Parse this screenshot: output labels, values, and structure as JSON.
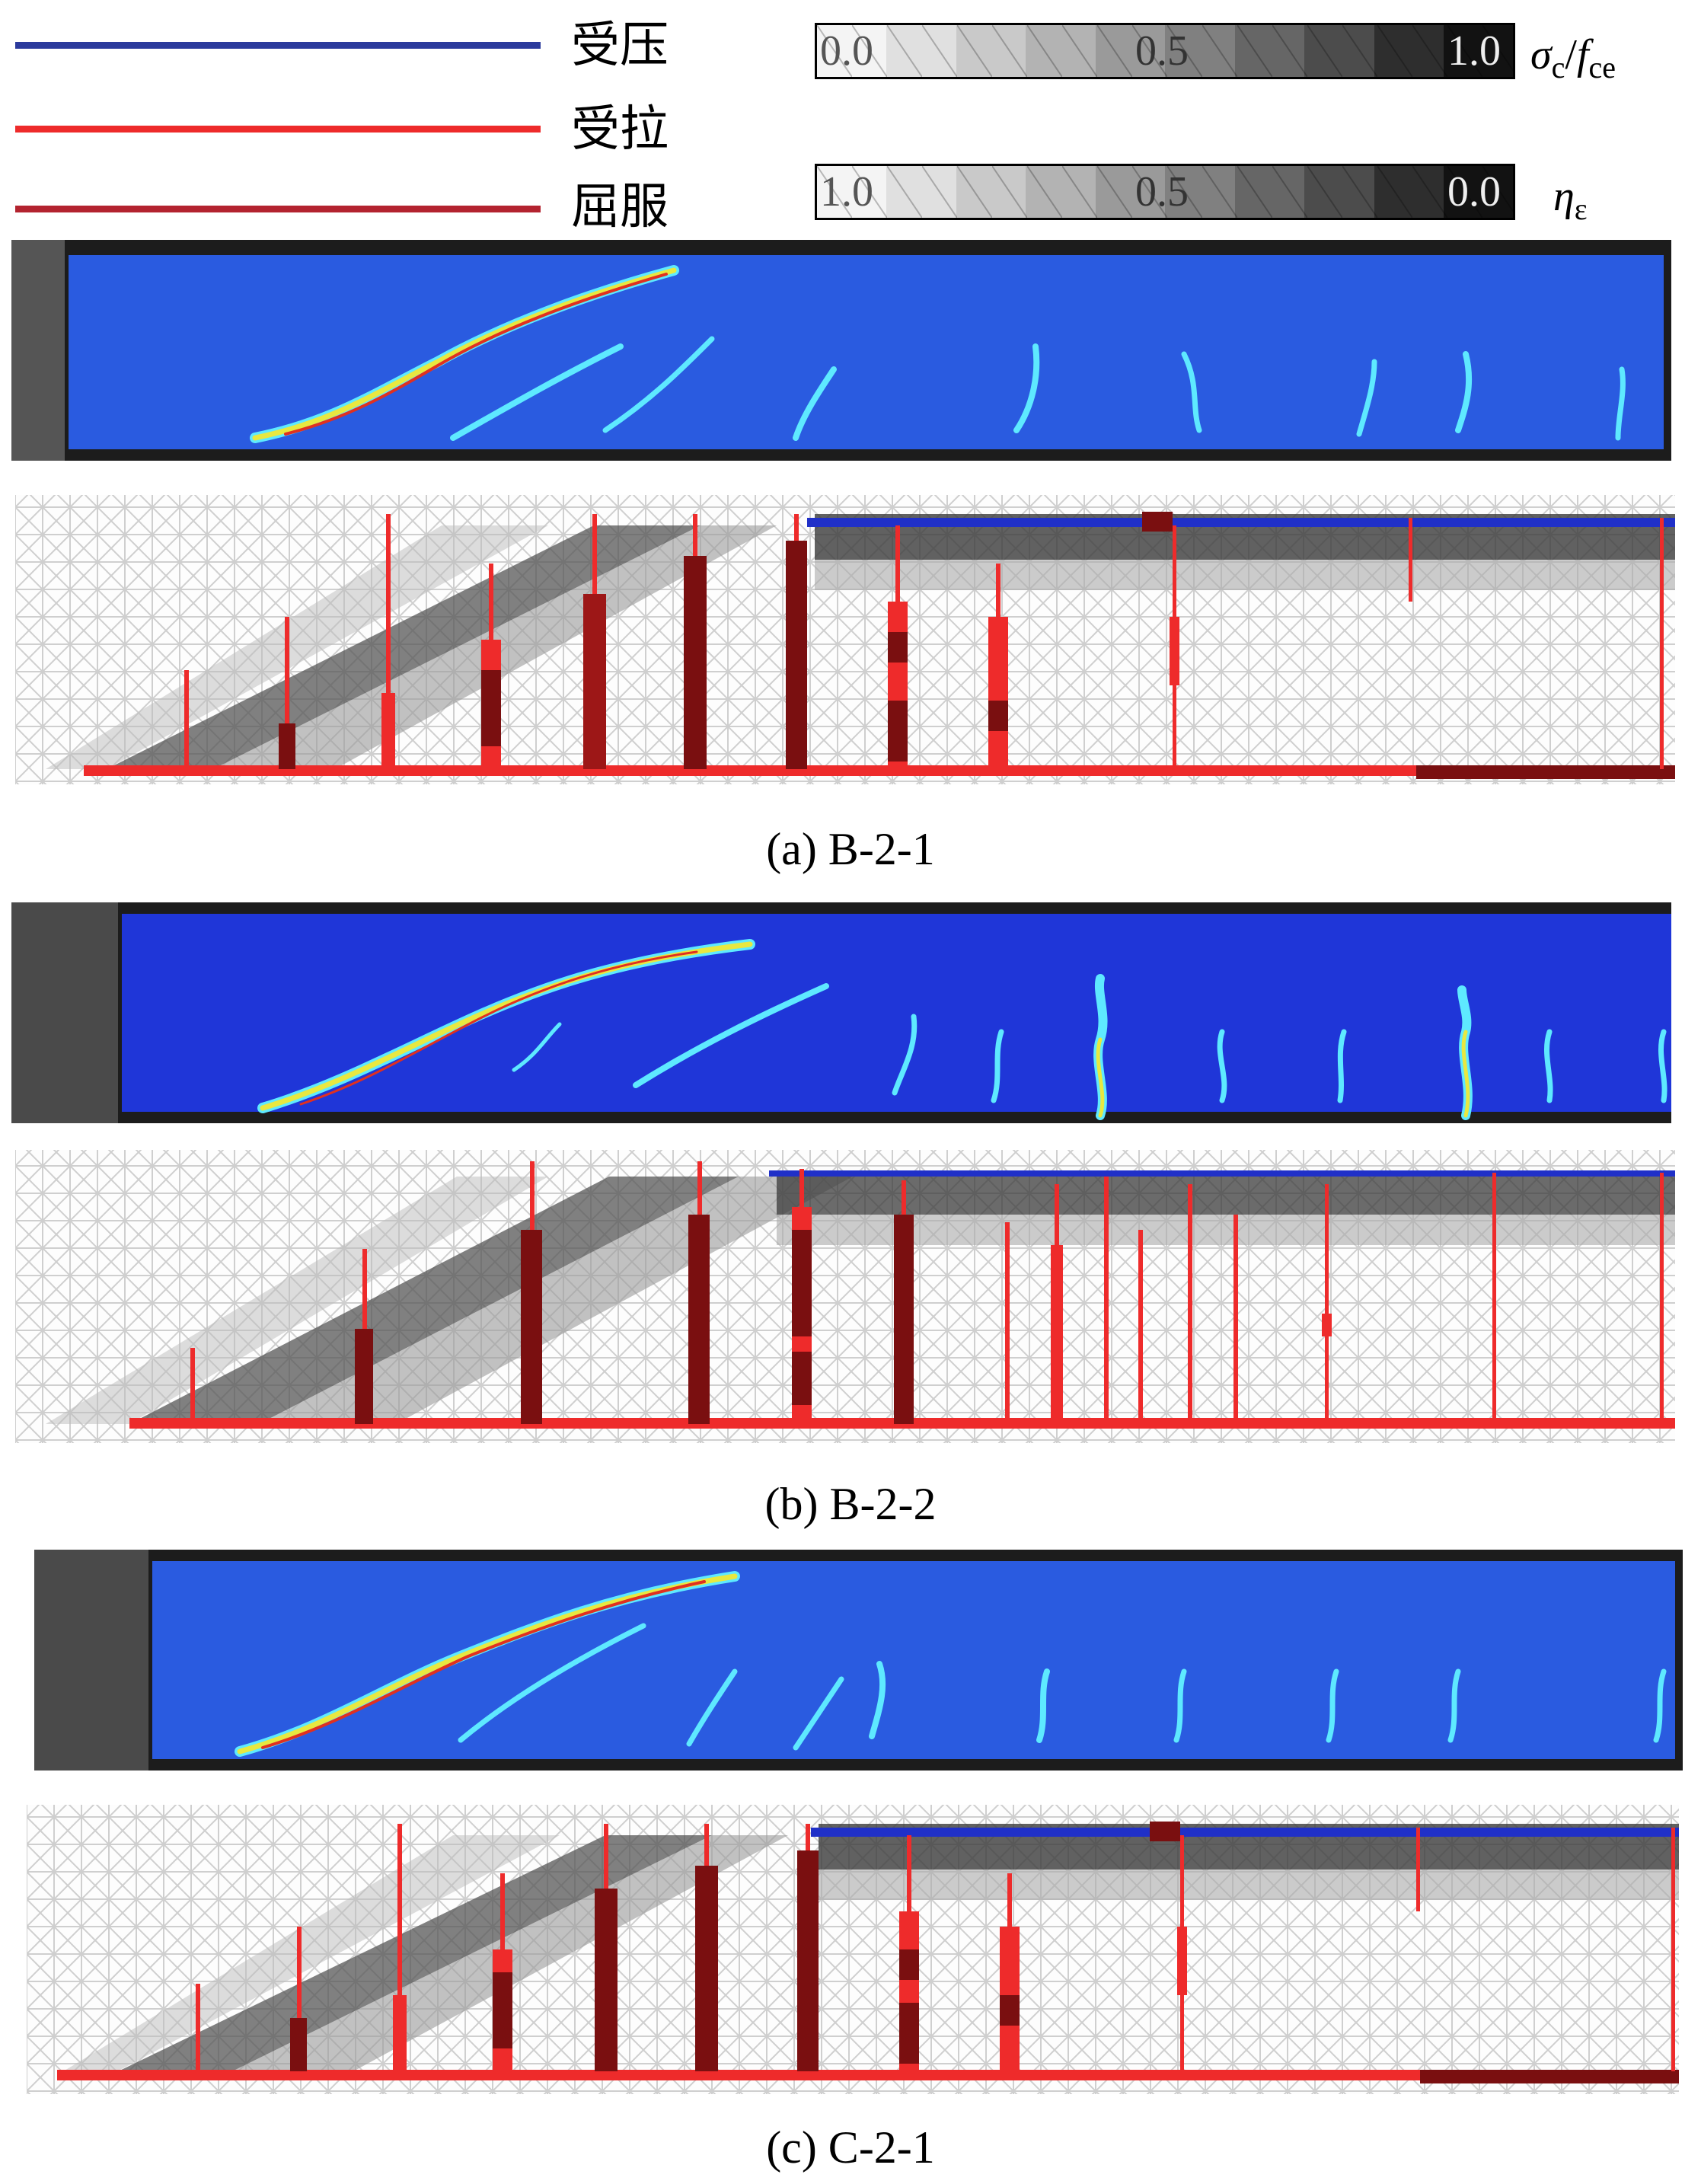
{
  "legend": {
    "items": [
      {
        "label": "受压",
        "color": "#2b3a9c"
      },
      {
        "label": "受拉",
        "color": "#ee2b2b"
      },
      {
        "label": "屈服",
        "color": "#b3232f"
      }
    ]
  },
  "scales": [
    {
      "ticks": [
        "0.0",
        "0.5",
        "1.0"
      ],
      "symbol": "σc/fce",
      "symbol_main": "σ",
      "symbol_sub": "c",
      "symbol_f": "f",
      "symbol_fsub": "ce",
      "direction": "light-to-dark"
    },
    {
      "ticks": [
        "1.0",
        "0.5",
        "0.0"
      ],
      "symbol": "ηε",
      "symbol_main": "η",
      "symbol_sub": "ε",
      "direction": "light-to-dark"
    }
  ],
  "panels": [
    {
      "caption": "(a) B-2-1"
    },
    {
      "caption": "(b) B-2-2"
    },
    {
      "caption": "(c) C-2-1"
    }
  ],
  "colors": {
    "compression": "#2b3a9c",
    "tension": "#ee2b2b",
    "yield": "#7a0f10",
    "crack_photo_bg": "#2a5be0"
  }
}
